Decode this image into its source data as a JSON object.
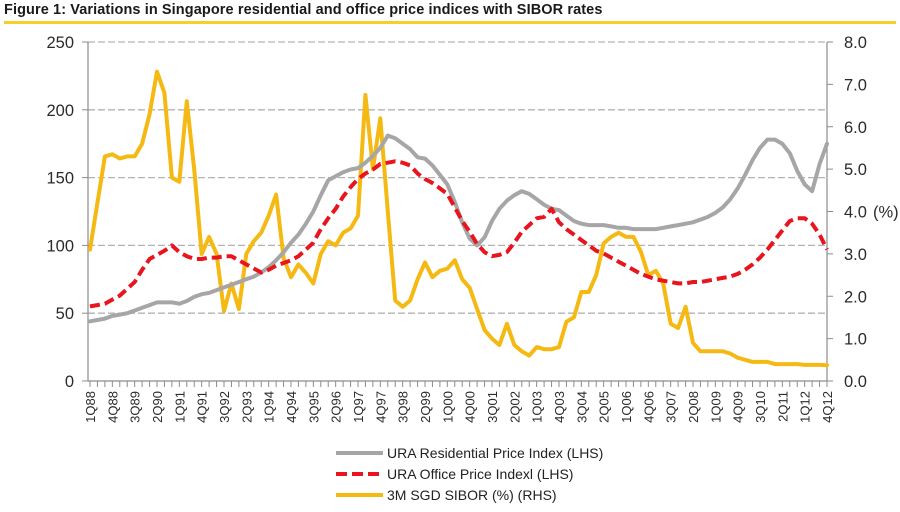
{
  "chart_data": {
    "type": "line",
    "title": "Figure 1: Variations in Singapore residential and office price indices with SIBOR rates",
    "xlabel": "",
    "ylabel_left": "",
    "ylabel_right": "(%)",
    "ylim_left": [
      0,
      250
    ],
    "ylim_right": [
      0,
      8.0
    ],
    "yticks_left": [
      "0",
      "50",
      "100",
      "150",
      "200",
      "250"
    ],
    "yticks_right": [
      "0.0",
      "1.0",
      "2.0",
      "3.0",
      "4.0",
      "5.0",
      "6.0",
      "7.0",
      "8.0"
    ],
    "x_range": [
      "1Q88",
      "4Q12"
    ],
    "x_tick_labels": [
      "1Q88",
      "4Q88",
      "3Q89",
      "2Q90",
      "1Q91",
      "4Q91",
      "3Q92",
      "2Q93",
      "1Q94",
      "4Q94",
      "3Q95",
      "2Q96",
      "1Q97",
      "4Q97",
      "3Q98",
      "2Q99",
      "1Q00",
      "4Q00",
      "3Q01",
      "2Q02",
      "1Q03",
      "4Q03",
      "3Q04",
      "2Q05",
      "1Q06",
      "4Q06",
      "3Q07",
      "2Q08",
      "1Q09",
      "4Q09",
      "3Q10",
      "2Q11",
      "1Q12",
      "4Q12"
    ],
    "grid": "horizontal dashed",
    "legend": "bottom-center",
    "series": [
      {
        "name": "URA Residential Price Index (LHS)",
        "axis": "left",
        "color": "#a6a6a6",
        "style": "solid",
        "values": [
          44,
          45,
          46,
          48,
          49,
          50,
          52,
          54,
          56,
          58,
          58,
          58,
          57,
          59,
          62,
          64,
          65,
          67,
          69,
          71,
          73,
          75,
          77,
          80,
          84,
          89,
          95,
          102,
          108,
          116,
          125,
          137,
          148,
          151,
          154,
          156,
          157,
          161,
          166,
          172,
          181,
          179,
          175,
          171,
          165,
          164,
          159,
          152,
          145,
          132,
          117,
          105,
          100,
          106,
          118,
          127,
          133,
          137,
          140,
          138,
          134,
          130,
          127,
          126,
          122,
          118,
          116,
          115,
          115,
          115,
          114,
          113,
          113,
          112,
          112,
          112,
          112,
          113,
          114,
          115,
          116,
          117,
          119,
          121,
          124,
          128,
          134,
          142,
          152,
          163,
          172,
          178,
          178,
          175,
          168,
          155,
          145,
          140,
          160,
          175
        ]
      },
      {
        "name": "URA Office Price Indexl (LHS)",
        "axis": "left",
        "color": "#e8141e",
        "style": "dashed",
        "values": [
          55,
          56,
          57,
          60,
          63,
          68,
          73,
          82,
          90,
          93,
          96,
          100,
          95,
          92,
          90,
          90,
          91,
          91,
          92,
          92,
          89,
          86,
          83,
          80,
          82,
          85,
          87,
          89,
          92,
          97,
          102,
          112,
          120,
          127,
          136,
          143,
          149,
          153,
          156,
          160,
          161,
          162,
          161,
          159,
          153,
          149,
          146,
          142,
          138,
          128,
          118,
          110,
          101,
          95,
          92,
          93,
          95,
          102,
          110,
          115,
          120,
          121,
          127,
          117,
          112,
          108,
          104,
          100,
          96,
          94,
          91,
          88,
          85,
          82,
          79,
          77,
          75,
          74,
          73,
          72,
          72,
          73,
          73,
          74,
          75,
          76,
          77,
          79,
          82,
          86,
          91,
          97,
          104,
          111,
          118,
          120,
          120,
          116,
          108,
          97
        ]
      },
      {
        "name": "3M SGD SIBOR (%) (RHS)",
        "axis": "right",
        "color": "#f5b914",
        "style": "solid",
        "values": [
          3.1,
          4.2,
          5.3,
          5.35,
          5.25,
          5.3,
          5.3,
          5.6,
          6.3,
          7.3,
          6.8,
          4.8,
          4.7,
          6.6,
          5.0,
          3.0,
          3.4,
          3.0,
          1.65,
          2.3,
          1.7,
          3.0,
          3.3,
          3.5,
          3.9,
          4.4,
          2.9,
          2.45,
          2.75,
          2.55,
          2.3,
          3.0,
          3.3,
          3.2,
          3.5,
          3.6,
          3.9,
          6.75,
          5.0,
          6.2,
          4.0,
          1.9,
          1.75,
          1.9,
          2.4,
          2.8,
          2.45,
          2.6,
          2.65,
          2.85,
          2.4,
          2.2,
          1.7,
          1.2,
          1.0,
          0.85,
          1.35,
          0.85,
          0.7,
          0.6,
          0.8,
          0.75,
          0.75,
          0.8,
          1.4,
          1.5,
          2.1,
          2.1,
          2.5,
          3.25,
          3.4,
          3.5,
          3.4,
          3.4,
          3.05,
          2.5,
          2.6,
          2.3,
          1.35,
          1.25,
          1.75,
          0.9,
          0.7,
          0.7,
          0.7,
          0.7,
          0.65,
          0.55,
          0.5,
          0.45,
          0.45,
          0.45,
          0.4,
          0.4,
          0.4,
          0.4,
          0.38,
          0.38,
          0.38,
          0.37
        ]
      }
    ]
  }
}
